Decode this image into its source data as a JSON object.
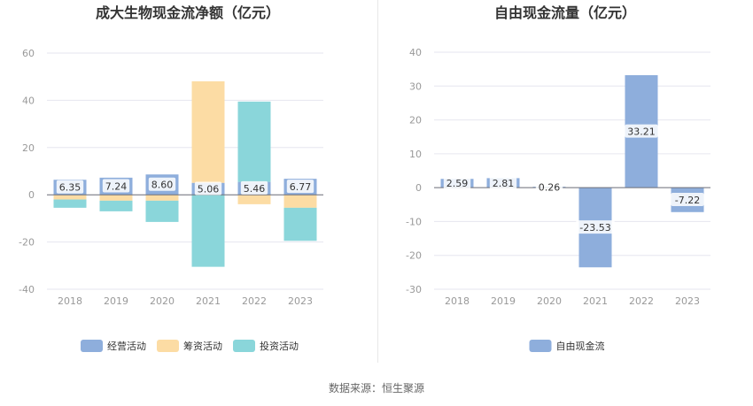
{
  "chart_data": [
    {
      "type": "bar",
      "stacked": true,
      "title": "成大生物现金流净额（亿元）",
      "categories": [
        "2018",
        "2019",
        "2020",
        "2021",
        "2022",
        "2023"
      ],
      "ylim": [
        -40,
        60
      ],
      "yticks": [
        -40,
        -20,
        0,
        20,
        40,
        60
      ],
      "grid": true,
      "legend_position": "bottom",
      "series": [
        {
          "name": "经营活动",
          "color": "#8eaedc",
          "values": [
            6.35,
            7.24,
            8.6,
            5.06,
            5.46,
            6.77
          ]
        },
        {
          "name": "筹资活动",
          "color": "#fcdca4",
          "values": [
            -2.0,
            -2.5,
            -2.5,
            43.0,
            -4.0,
            -5.5
          ]
        },
        {
          "name": "投资活动",
          "color": "#8ad6da",
          "values": [
            -3.5,
            -4.5,
            -9.0,
            -30.5,
            34.0,
            -14.0
          ]
        }
      ],
      "data_labels": [
        "6.35",
        "7.24",
        "8.60",
        "5.06",
        "5.46",
        "6.77"
      ]
    },
    {
      "type": "bar",
      "title": "自由现金流量（亿元）",
      "categories": [
        "2018",
        "2019",
        "2020",
        "2021",
        "2022",
        "2023"
      ],
      "ylim": [
        -30,
        40
      ],
      "yticks": [
        -30,
        -20,
        -10,
        0,
        10,
        20,
        30,
        40
      ],
      "grid": true,
      "legend_position": "bottom",
      "series": [
        {
          "name": "自由现金流",
          "color": "#8eaedc",
          "values": [
            2.59,
            2.81,
            0.26,
            -23.53,
            33.21,
            -7.22
          ]
        }
      ],
      "data_labels": [
        "2.59",
        "2.81",
        "0.26",
        "-23.53",
        "33.21",
        "-7.22"
      ]
    }
  ],
  "footer": {
    "source": "数据来源：恒生聚源"
  }
}
